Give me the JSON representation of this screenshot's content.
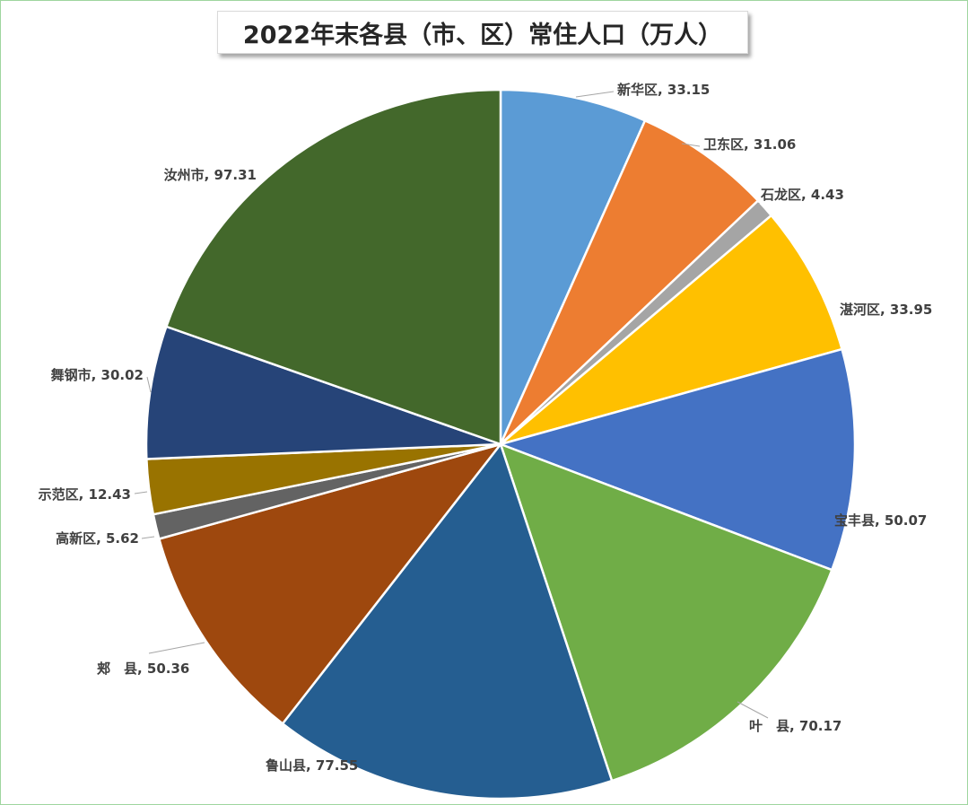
{
  "chart_data": {
    "type": "pie",
    "title": "2022年末各县（市、区）常住人口（万人）",
    "start_angle_deg": 0,
    "direction": "clockwise",
    "slices": [
      {
        "label": "新华区",
        "display": "新华区, 33.15",
        "value": 33.15,
        "color": "#5b9bd5"
      },
      {
        "label": "卫东区",
        "display": "卫东区, 31.06",
        "value": 31.06,
        "color": "#ed7d31"
      },
      {
        "label": "石龙区",
        "display": "石龙区, 4.43",
        "value": 4.43,
        "color": "#a5a5a5"
      },
      {
        "label": "湛河区",
        "display": "湛河区, 33.95",
        "value": 33.95,
        "color": "#ffc000"
      },
      {
        "label": "宝丰县",
        "display": "宝丰县, 50.07",
        "value": 50.07,
        "color": "#4472c4"
      },
      {
        "label": "叶　县",
        "display": "叶　县, 70.17",
        "value": 70.17,
        "color": "#70ad47"
      },
      {
        "label": "鲁山县",
        "display": "鲁山县, 77.55",
        "value": 77.55,
        "color": "#255e91"
      },
      {
        "label": "郏　县",
        "display": "郏　县, 50.36",
        "value": 50.36,
        "color": "#9e480e"
      },
      {
        "label": "高新区",
        "display": "高新区, 5.62",
        "value": 5.62,
        "color": "#636363"
      },
      {
        "label": "示范区",
        "display": "示范区, 12.43",
        "value": 12.43,
        "color": "#997300"
      },
      {
        "label": "舞钢市",
        "display": "舞钢市, 30.02",
        "value": 30.02,
        "color": "#264478"
      },
      {
        "label": "汝州市",
        "display": "汝州市, 97.31",
        "value": 97.31,
        "color": "#43682b"
      }
    ]
  }
}
